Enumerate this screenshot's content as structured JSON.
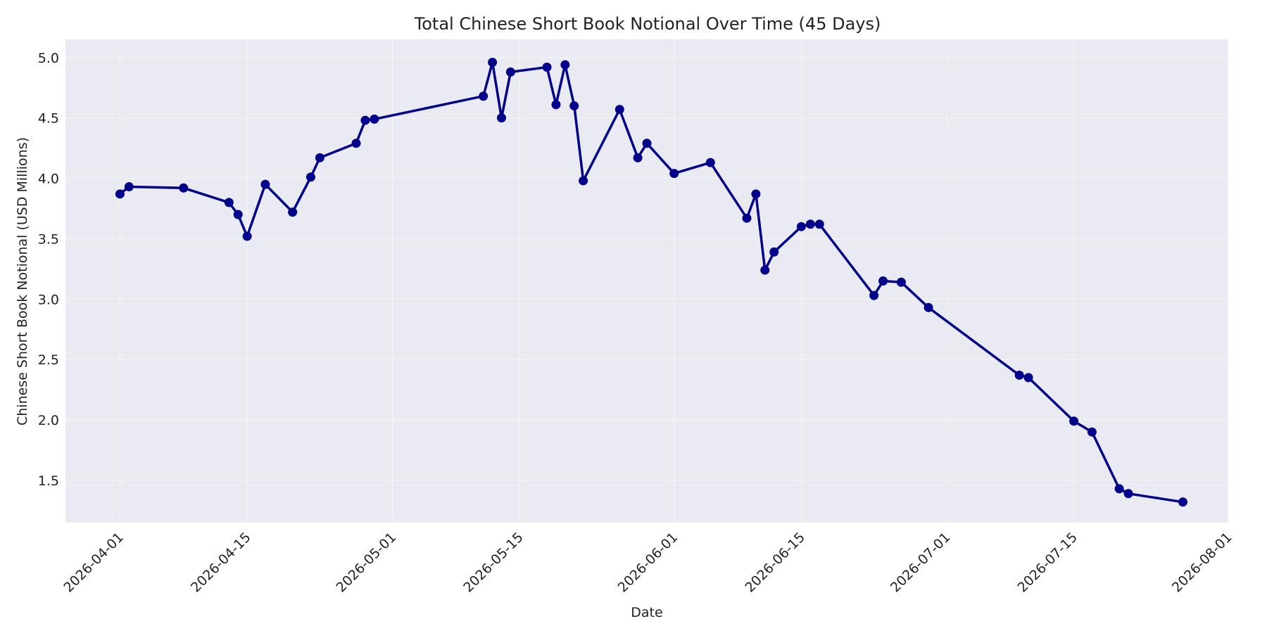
{
  "chart_data": {
    "type": "line",
    "title": "Total Chinese Short Book Notional Over Time (45 Days)",
    "xlabel": "Date",
    "ylabel": "Chinese Short Book Notional (USD Millions)",
    "xlim": [
      "2026-03-26",
      "2026-08-01"
    ],
    "ylim": [
      1.15,
      5.15
    ],
    "x_ticks": [
      "2026-04-01",
      "2026-04-15",
      "2026-05-01",
      "2026-05-15",
      "2026-06-01",
      "2026-06-15",
      "2026-07-01",
      "2026-07-15",
      "2026-08-01"
    ],
    "y_ticks": [
      1.5,
      2.0,
      2.5,
      3.0,
      3.5,
      4.0,
      4.5,
      5.0
    ],
    "y_tick_labels": [
      "1.5",
      "2.0",
      "2.5",
      "3.0",
      "3.5",
      "4.0",
      "4.5",
      "5.0"
    ],
    "grid": true,
    "colors": {
      "line": "#00008b",
      "plot_background": "#eaeaf2"
    },
    "series": [
      {
        "x": [
          "2026-04-01",
          "2026-04-02",
          "2026-04-08",
          "2026-04-13",
          "2026-04-14",
          "2026-04-15",
          "2026-04-17",
          "2026-04-20",
          "2026-04-22",
          "2026-04-23",
          "2026-04-27",
          "2026-04-28",
          "2026-04-29",
          "2026-05-11",
          "2026-05-12",
          "2026-05-13",
          "2026-05-14",
          "2026-05-18",
          "2026-05-19",
          "2026-05-20",
          "2026-05-21",
          "2026-05-22",
          "2026-05-26",
          "2026-05-28",
          "2026-05-29",
          "2026-06-01",
          "2026-06-05",
          "2026-06-09",
          "2026-06-10",
          "2026-06-11",
          "2026-06-12",
          "2026-06-15",
          "2026-06-16",
          "2026-06-17",
          "2026-06-23",
          "2026-06-24",
          "2026-06-26",
          "2026-06-29",
          "2026-07-09",
          "2026-07-10",
          "2026-07-15",
          "2026-07-17",
          "2026-07-20",
          "2026-07-21",
          "2026-07-27"
        ],
        "values": [
          3.87,
          3.93,
          3.92,
          3.8,
          3.7,
          3.52,
          3.95,
          3.72,
          4.01,
          4.17,
          4.29,
          4.48,
          4.49,
          4.68,
          4.96,
          4.5,
          4.88,
          4.92,
          4.61,
          4.94,
          4.6,
          3.98,
          4.57,
          4.17,
          4.29,
          4.04,
          4.13,
          3.67,
          3.87,
          3.24,
          3.39,
          3.6,
          3.62,
          3.62,
          3.03,
          3.15,
          3.14,
          2.93,
          2.37,
          2.35,
          1.99,
          1.9,
          1.43,
          1.39,
          1.32
        ]
      }
    ]
  }
}
